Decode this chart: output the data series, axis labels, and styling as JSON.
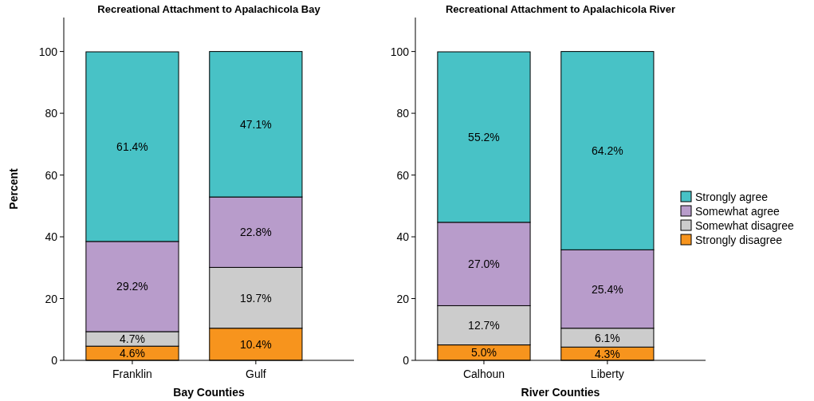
{
  "chart_data": [
    {
      "type": "bar",
      "title": "Recreational Attachment to Apalachicola Bay",
      "xlabel": "Bay Counties",
      "ylabel": "Percent",
      "categories": [
        "Franklin",
        "Gulf"
      ],
      "stacked": true,
      "ylim": [
        0,
        111
      ],
      "yticks": [
        0,
        20,
        40,
        60,
        80,
        100
      ],
      "legend": false,
      "series": [
        {
          "color": "#f7941d",
          "values": [
            4.6,
            10.4
          ],
          "value_labels": [
            "4.6%",
            "10.4%"
          ]
        },
        {
          "color": "#cccccc",
          "values": [
            4.7,
            19.7
          ],
          "value_labels": [
            "4.7%",
            "19.7%"
          ]
        },
        {
          "color": "#b89ccb",
          "values": [
            29.2,
            22.8
          ],
          "value_labels": [
            "29.2%",
            "22.8%"
          ]
        },
        {
          "color": "#48c2c6",
          "values": [
            61.4,
            47.1
          ],
          "value_labels": [
            "61.4%",
            "47.1%"
          ]
        }
      ]
    },
    {
      "type": "bar",
      "title": "Recreational Attachment to Apalachicola River",
      "xlabel": "River Counties",
      "categories": [
        "Calhoun",
        "Liberty"
      ],
      "stacked": true,
      "ylim": [
        0,
        111
      ],
      "yticks": [
        0,
        20,
        40,
        60,
        80,
        100
      ],
      "legend": "right",
      "series": [
        {
          "name": "Strongly disagree",
          "color": "#f7941d",
          "values": [
            5.0,
            4.3
          ],
          "value_labels": [
            "5.0%",
            "4.3%"
          ]
        },
        {
          "name": "Somewhat disagree",
          "color": "#cccccc",
          "values": [
            12.7,
            6.1
          ],
          "value_labels": [
            "12.7%",
            "6.1%"
          ]
        },
        {
          "name": "Somewhat agree",
          "color": "#b89ccb",
          "values": [
            27.0,
            25.4
          ],
          "value_labels": [
            "27.0%",
            "25.4%"
          ]
        },
        {
          "name": "Strongly agree",
          "color": "#48c2c6",
          "values": [
            55.2,
            64.2
          ],
          "value_labels": [
            "55.2%",
            "64.2%"
          ]
        }
      ]
    }
  ]
}
